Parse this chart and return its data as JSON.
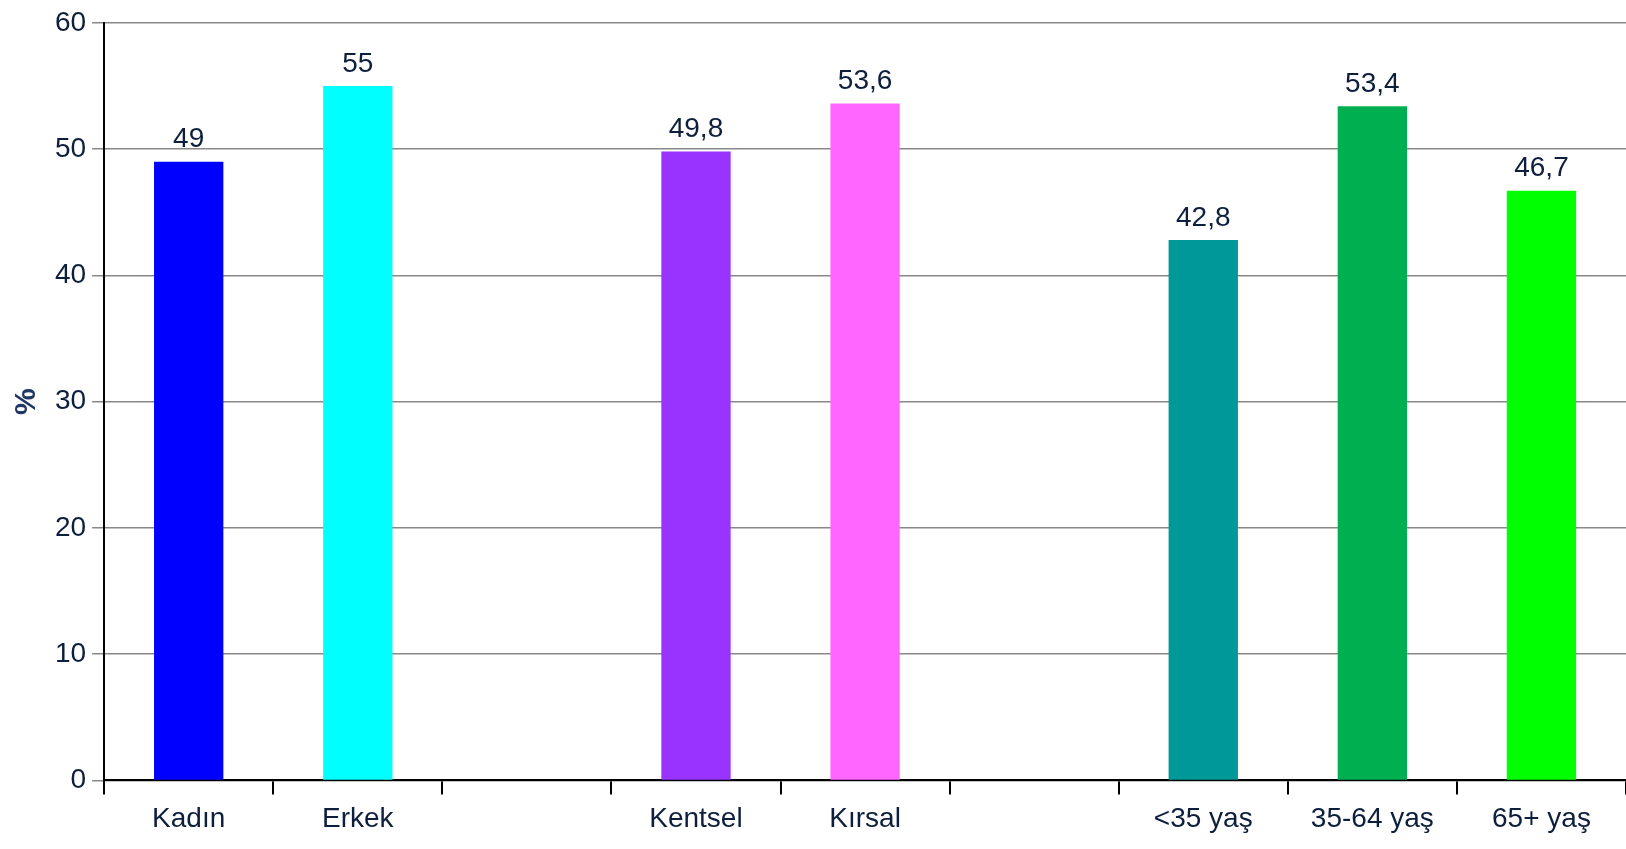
{
  "chart_data": {
    "type": "bar",
    "categories": [
      "Kadın",
      "Erkek",
      null,
      "Kentsel",
      "Kırsal",
      null,
      "<35 yaş",
      "35-64 yaş",
      "65+ yaş"
    ],
    "values": [
      49,
      55,
      null,
      49.8,
      53.6,
      null,
      42.8,
      53.4,
      46.7
    ],
    "colors": [
      "#0000ff",
      "#00ffff",
      null,
      "#9933ff",
      "#ff66ff",
      null,
      "#009999",
      "#00b050",
      "#00ff00"
    ],
    "value_labels": [
      "49",
      "55",
      null,
      "49,8",
      "53,6",
      null,
      "42,8",
      "53,4",
      "46,7"
    ],
    "ylabel": "%",
    "ylim": [
      0,
      60
    ],
    "yticks": [
      0,
      10,
      20,
      30,
      40,
      50,
      60
    ],
    "grid": "y"
  }
}
